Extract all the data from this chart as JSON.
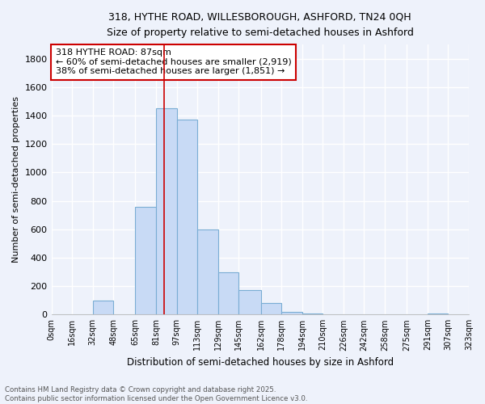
{
  "title_line1": "318, HYTHE ROAD, WILLESBOROUGH, ASHFORD, TN24 0QH",
  "title_line2": "Size of property relative to semi-detached houses in Ashford",
  "xlabel": "Distribution of semi-detached houses by size in Ashford",
  "ylabel": "Number of semi-detached properties",
  "footnote": "Contains HM Land Registry data © Crown copyright and database right 2025.\nContains public sector information licensed under the Open Government Licence v3.0.",
  "annotation_line1": "318 HYTHE ROAD: 87sqm",
  "annotation_line2": "← 60% of semi-detached houses are smaller (2,919)",
  "annotation_line3": "38% of semi-detached houses are larger (1,851) →",
  "bar_left_edges": [
    0,
    16,
    32,
    48,
    65,
    81,
    97,
    113,
    129,
    145,
    162,
    178,
    194,
    210,
    226,
    242,
    258,
    275,
    291,
    307
  ],
  "bar_widths": [
    16,
    16,
    16,
    17,
    16,
    16,
    16,
    16,
    16,
    17,
    16,
    16,
    16,
    16,
    16,
    16,
    17,
    16,
    16,
    16
  ],
  "bar_heights": [
    3,
    0,
    97,
    0,
    760,
    1450,
    1370,
    600,
    300,
    175,
    80,
    20,
    5,
    2,
    0,
    0,
    0,
    0,
    5,
    0
  ],
  "bar_color": "#c8daf5",
  "bar_edge_color": "#7aadd4",
  "vline_x": 87,
  "vline_color": "#cc0000",
  "ylim": [
    0,
    1900
  ],
  "yticks": [
    0,
    200,
    400,
    600,
    800,
    1000,
    1200,
    1400,
    1600,
    1800
  ],
  "xtick_labels": [
    "0sqm",
    "16sqm",
    "32sqm",
    "48sqm",
    "65sqm",
    "81sqm",
    "97sqm",
    "113sqm",
    "129sqm",
    "145sqm",
    "162sqm",
    "178sqm",
    "194sqm",
    "210sqm",
    "226sqm",
    "242sqm",
    "258sqm",
    "275sqm",
    "291sqm",
    "307sqm",
    "323sqm"
  ],
  "xtick_positions": [
    0,
    16,
    32,
    48,
    65,
    81,
    97,
    113,
    129,
    145,
    162,
    178,
    194,
    210,
    226,
    242,
    258,
    275,
    291,
    307,
    323
  ],
  "background_color": "#eef2fb",
  "grid_color": "#ffffff",
  "annotation_box_edge_color": "#cc0000",
  "annotation_box_face_color": "white"
}
